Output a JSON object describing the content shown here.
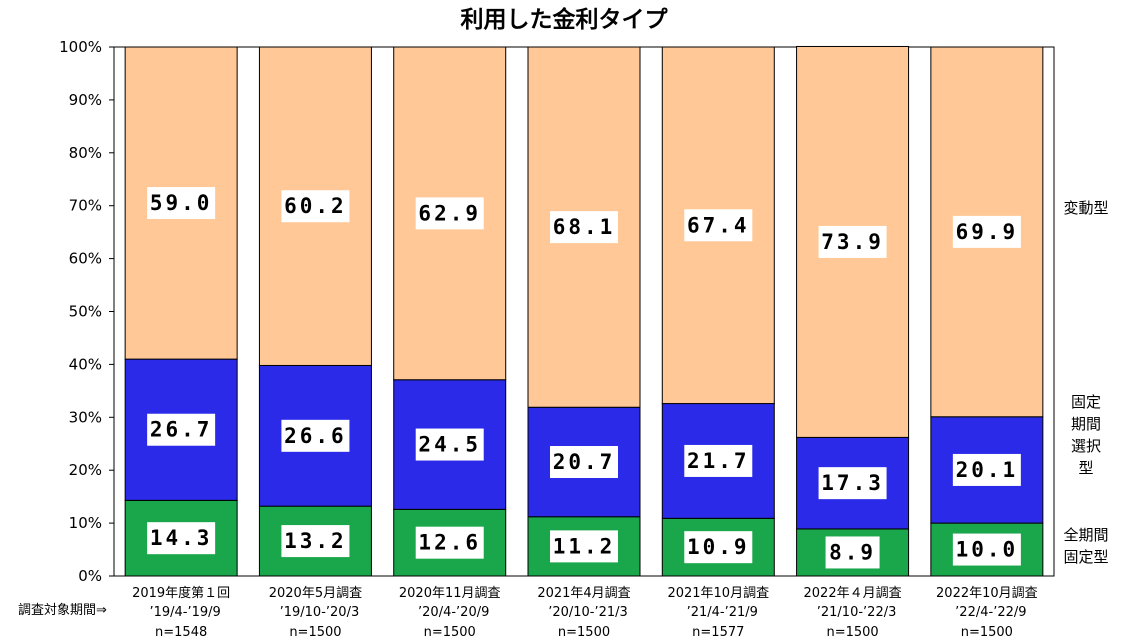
{
  "chart_data": {
    "type": "bar",
    "stacked": true,
    "title": "利用した金利タイプ",
    "x_axis_prefix": "調査対象期間⇒",
    "categories": [
      {
        "label": "2019年度第１回",
        "period": "’19/4-’19/9",
        "n": "n=1548"
      },
      {
        "label": "2020年5月調査",
        "period": "’19/10-’20/3",
        "n": "n=1500"
      },
      {
        "label": "2020年11月調査",
        "period": "’20/4-’20/9",
        "n": "n=1500"
      },
      {
        "label": "2021年4月調査",
        "period": "’20/10-’21/3",
        "n": "n=1500"
      },
      {
        "label": "2021年10月調査",
        "period": "’21/4-’21/9",
        "n": "n=1577"
      },
      {
        "label": "2022年４月調査",
        "period": "’21/10-’22/3",
        "n": "n=1500"
      },
      {
        "label": "2022年10月調査",
        "period": "’22/4-’22/9",
        "n": "n=1500"
      }
    ],
    "series": [
      {
        "name": "全期間固定型",
        "legend_lines": [
          "全期間",
          "固定型"
        ],
        "color": "#1aa64a",
        "values": [
          14.3,
          13.2,
          12.6,
          11.2,
          10.9,
          8.9,
          10.0
        ],
        "labels": [
          "14.3",
          "13.2",
          "12.6",
          "11.2",
          "10.9",
          "8.9",
          "10.0"
        ]
      },
      {
        "name": "固定期間選択型",
        "legend_lines": [
          "固定",
          "期間",
          "選択",
          "型"
        ],
        "color": "#2a2ae8",
        "values": [
          26.7,
          26.6,
          24.5,
          20.7,
          21.7,
          17.3,
          20.1
        ],
        "labels": [
          "26.7",
          "26.6",
          "24.5",
          "20.7",
          "21.7",
          "17.3",
          "20.1"
        ]
      },
      {
        "name": "変動型",
        "legend_lines": [
          "変動型"
        ],
        "color": "#ffc896",
        "values": [
          59.0,
          60.2,
          62.9,
          68.1,
          67.4,
          73.9,
          69.9
        ],
        "labels": [
          "59.0",
          "60.2",
          "62.9",
          "68.1",
          "67.4",
          "73.9",
          "69.9"
        ]
      }
    ],
    "y_ticks": [
      "0%",
      "10%",
      "20%",
      "30%",
      "40%",
      "50%",
      "60%",
      "70%",
      "80%",
      "90%",
      "100%"
    ],
    "ylim": [
      0,
      100
    ],
    "grid": false,
    "legend_position": "right"
  }
}
